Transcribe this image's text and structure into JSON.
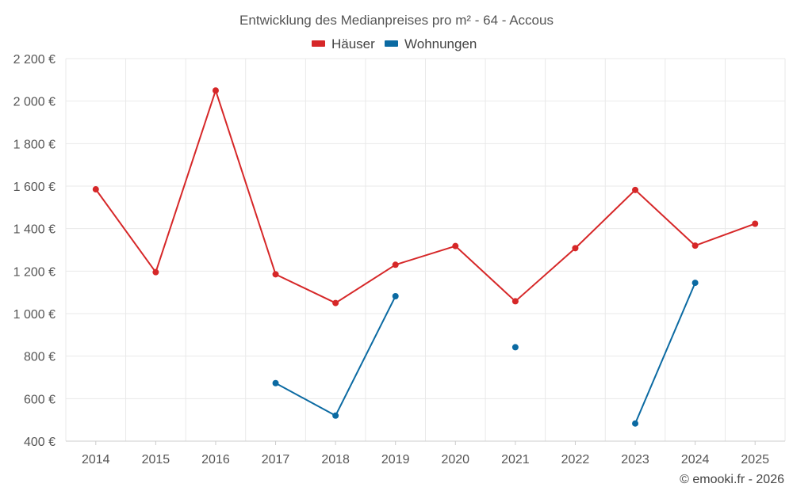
{
  "chart_data": {
    "type": "line",
    "title": "Entwicklung des Medianpreises pro m² - 64 - Accous",
    "xlabel": "",
    "ylabel": "",
    "categories": [
      "2014",
      "2015",
      "2016",
      "2017",
      "2018",
      "2019",
      "2020",
      "2021",
      "2022",
      "2023",
      "2024",
      "2025"
    ],
    "y_ticks": [
      400,
      600,
      800,
      1000,
      1200,
      1400,
      1600,
      1800,
      2000,
      2200
    ],
    "y_tick_labels": [
      "400 €",
      "600 €",
      "800 €",
      "1 000 €",
      "1 200 €",
      "1 400 €",
      "1 600 €",
      "1 800 €",
      "2 000 €",
      "2 200 €"
    ],
    "ylim": [
      400,
      2200
    ],
    "grid": true,
    "legend_position": "top-center",
    "series": [
      {
        "name": "Häuser",
        "color": "#d62728",
        "values": [
          1585,
          1195,
          2050,
          1185,
          1050,
          1230,
          1318,
          1058,
          1308,
          1582,
          1320,
          1423
        ]
      },
      {
        "name": "Wohnungen",
        "color": "#0b6aa2",
        "values": [
          null,
          null,
          null,
          673,
          520,
          1082,
          null,
          842,
          null,
          483,
          1145,
          null
        ]
      }
    ]
  },
  "credit": "© emooki.fr - 2026"
}
